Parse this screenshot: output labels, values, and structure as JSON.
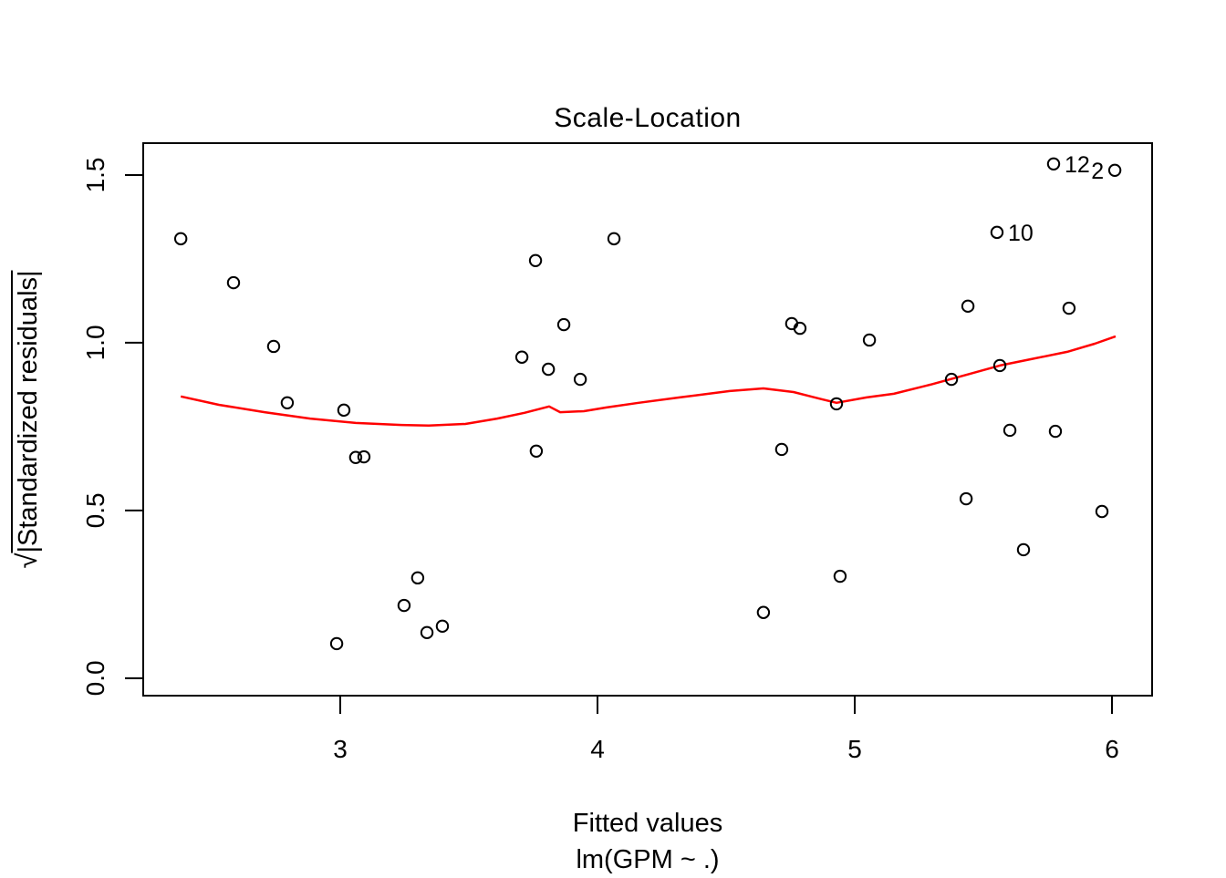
{
  "title": "Scale-Location",
  "x_axis": {
    "label": "Fitted values",
    "sublabel": "lm(GPM ~ .)"
  },
  "y_axis": {
    "radical": "√",
    "label_under_bar": "|Standardized residuals|"
  },
  "colors": {
    "background": "#ffffff",
    "axis": "#000000",
    "points": "#000000",
    "smooth_line": "#ff0000",
    "text": "#000000"
  },
  "chart_data": {
    "type": "scatter",
    "title": "Scale-Location",
    "xlabel": "Fitted values",
    "xlabel2": "lm(GPM ~ .)",
    "ylabel": "√|Standardized residuals|",
    "xlim": [
      2.234,
      6.156
    ],
    "ylim": [
      -0.052,
      1.595
    ],
    "x_ticks": [
      3,
      4,
      5,
      6
    ],
    "x_tick_labels": [
      "3",
      "4",
      "5",
      "6"
    ],
    "y_ticks": [
      0.0,
      0.5,
      1.0,
      1.5
    ],
    "y_tick_labels": [
      "0.0",
      "0.5",
      "1.0",
      "1.5"
    ],
    "grid": false,
    "legend": null,
    "points": [
      {
        "x": 2.38,
        "y": 1.31
      },
      {
        "x": 2.585,
        "y": 1.179
      },
      {
        "x": 2.741,
        "y": 0.989
      },
      {
        "x": 2.794,
        "y": 0.821
      },
      {
        "x": 2.986,
        "y": 0.103
      },
      {
        "x": 3.014,
        "y": 0.799
      },
      {
        "x": 3.06,
        "y": 0.658
      },
      {
        "x": 3.092,
        "y": 0.66
      },
      {
        "x": 3.248,
        "y": 0.217
      },
      {
        "x": 3.301,
        "y": 0.299
      },
      {
        "x": 3.337,
        "y": 0.136
      },
      {
        "x": 3.397,
        "y": 0.155
      },
      {
        "x": 3.706,
        "y": 0.957
      },
      {
        "x": 3.759,
        "y": 1.245
      },
      {
        "x": 3.762,
        "y": 0.677
      },
      {
        "x": 3.809,
        "y": 0.921
      },
      {
        "x": 3.869,
        "y": 1.054
      },
      {
        "x": 3.933,
        "y": 0.891
      },
      {
        "x": 4.064,
        "y": 1.31
      },
      {
        "x": 4.645,
        "y": 0.196
      },
      {
        "x": 4.716,
        "y": 0.682
      },
      {
        "x": 4.755,
        "y": 1.057
      },
      {
        "x": 4.787,
        "y": 1.043
      },
      {
        "x": 4.929,
        "y": 0.818
      },
      {
        "x": 4.943,
        "y": 0.304
      },
      {
        "x": 5.057,
        "y": 1.008
      },
      {
        "x": 5.376,
        "y": 0.891
      },
      {
        "x": 5.433,
        "y": 0.535
      },
      {
        "x": 5.44,
        "y": 1.109
      },
      {
        "x": 5.553,
        "y": 1.329,
        "label": "10",
        "label_side": "right"
      },
      {
        "x": 5.564,
        "y": 0.932
      },
      {
        "x": 5.603,
        "y": 0.739
      },
      {
        "x": 5.656,
        "y": 0.383
      },
      {
        "x": 5.773,
        "y": 1.533,
        "label": "12",
        "label_side": "right"
      },
      {
        "x": 5.78,
        "y": 0.736
      },
      {
        "x": 5.833,
        "y": 1.103
      },
      {
        "x": 5.961,
        "y": 0.497
      },
      {
        "x": 6.011,
        "y": 1.514,
        "label": "2",
        "label_side": "left"
      }
    ],
    "smooth_line": {
      "name": "loess smooth",
      "color": "#ff0000",
      "points": [
        [
          2.38,
          0.84
        ],
        [
          2.528,
          0.815
        ],
        [
          2.706,
          0.793
        ],
        [
          2.883,
          0.774
        ],
        [
          3.06,
          0.761
        ],
        [
          3.238,
          0.755
        ],
        [
          3.344,
          0.753
        ],
        [
          3.486,
          0.758
        ],
        [
          3.61,
          0.774
        ],
        [
          3.716,
          0.791
        ],
        [
          3.812,
          0.81
        ],
        [
          3.855,
          0.793
        ],
        [
          3.947,
          0.796
        ],
        [
          4.035,
          0.807
        ],
        [
          4.16,
          0.821
        ],
        [
          4.319,
          0.837
        ],
        [
          4.514,
          0.856
        ],
        [
          4.645,
          0.864
        ],
        [
          4.762,
          0.853
        ],
        [
          4.869,
          0.832
        ],
        [
          4.929,
          0.821
        ],
        [
          5.046,
          0.837
        ],
        [
          5.152,
          0.848
        ],
        [
          5.294,
          0.875
        ],
        [
          5.436,
          0.905
        ],
        [
          5.564,
          0.932
        ],
        [
          5.684,
          0.951
        ],
        [
          5.826,
          0.973
        ],
        [
          5.933,
          0.997
        ],
        [
          6.014,
          1.019
        ]
      ]
    }
  }
}
